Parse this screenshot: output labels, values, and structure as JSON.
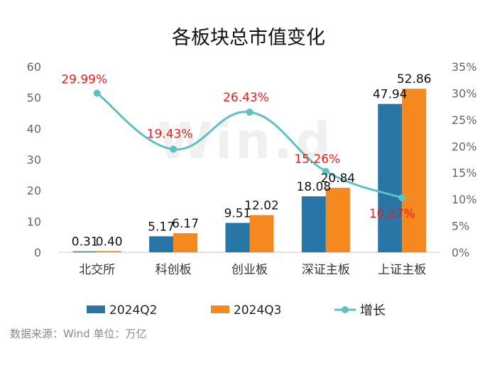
{
  "watermark": "Win.d",
  "source_text": "数据来源：Wind    单位：万亿",
  "colors": {
    "q2": "#2876a6",
    "q3": "#f5891f",
    "growth": "#5fc2c2",
    "growth_label": "#ee1c1c"
  },
  "chart_data": {
    "type": "bar",
    "title": "各板块总市值变化",
    "categories": [
      "北交所",
      "科创板",
      "创业板",
      "深证主板",
      "上证主板"
    ],
    "series": [
      {
        "name": "2024Q2",
        "type": "bar",
        "axis": "left",
        "values": [
          0.31,
          5.17,
          9.51,
          18.08,
          47.94
        ],
        "labels": [
          "0.31",
          "5.17",
          "9.51",
          "18.08",
          "47.94"
        ]
      },
      {
        "name": "2024Q3",
        "type": "bar",
        "axis": "left",
        "values": [
          0.4,
          6.17,
          12.02,
          20.84,
          52.86
        ],
        "labels": [
          "0.40",
          "6.17",
          "12.02",
          "20.84",
          "52.86"
        ]
      },
      {
        "name": "增长",
        "type": "line",
        "axis": "right",
        "values": [
          29.99,
          19.43,
          26.43,
          15.26,
          10.27
        ],
        "labels": [
          "29.99%",
          "19.43%",
          "26.43%",
          "15.26%",
          "10.27%"
        ]
      }
    ],
    "y_left": {
      "ylim": [
        0,
        60
      ],
      "ticks": [
        "0",
        "10",
        "20",
        "30",
        "40",
        "50",
        "60"
      ]
    },
    "y_right": {
      "ylim": [
        0,
        35
      ],
      "ticks": [
        "0%",
        "5%",
        "10%",
        "15%",
        "20%",
        "25%",
        "30%",
        "35%"
      ]
    },
    "legend": {
      "placement": "bottom"
    },
    "grid": false
  }
}
